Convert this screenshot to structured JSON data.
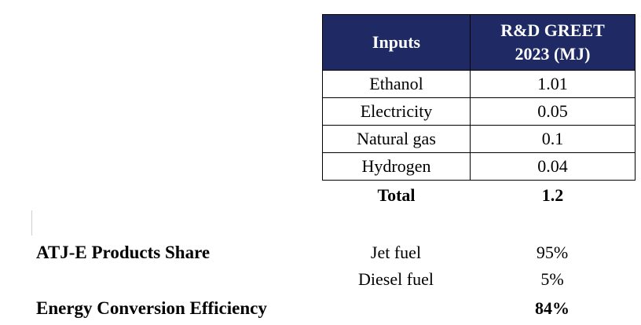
{
  "table": {
    "headers": [
      "Inputs",
      "R&D GREET\n2023  (MJ)"
    ],
    "rows": [
      {
        "input": "Ethanol",
        "value": "1.01"
      },
      {
        "input": "Electricity",
        "value": "0.05"
      },
      {
        "input": "Natural gas",
        "value": "0.1"
      },
      {
        "input": "Hydrogen",
        "value": "0.04"
      }
    ],
    "total": {
      "label": "Total",
      "value": "1.2"
    },
    "header_color": "#1f2a64"
  },
  "summary": {
    "products_share_label": "ATJ-E Products Share",
    "products": [
      {
        "name": "Jet fuel",
        "share": "95%"
      },
      {
        "name": "Diesel fuel",
        "share": "5%"
      }
    ],
    "efficiency_label": "Energy Conversion Efficiency",
    "efficiency_value": "84%"
  }
}
